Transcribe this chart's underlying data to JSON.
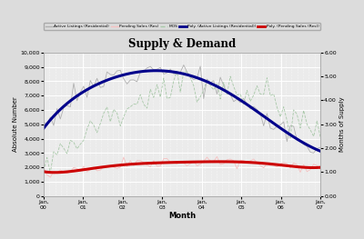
{
  "title": "Supply & Demand",
  "xlabel": "Month",
  "ylabel_left": "Absolute Number",
  "ylabel_right": "Months of Supply",
  "x_labels": [
    "Jan,\n00",
    "Jan,\n01",
    "Jan,\n02",
    "Jan,\n03",
    "Jan,\n04",
    "Jan,\n05",
    "Jan,\n06",
    "Jan,\n07"
  ],
  "n_points": 84,
  "ylim_left": [
    0,
    10000
  ],
  "ylim_right": [
    0.0,
    6.0
  ],
  "bg_color": "#dcdcdc",
  "plot_bg_color": "#ebebeb",
  "grid_color": "#ffffff",
  "active_listings_color": "#b0b0b0",
  "pending_sales_color": "#f5c0c0",
  "mos_color": "#a8c8a8",
  "poly_active_color": "#00008b",
  "poly_pending_color": "#cc0000",
  "legend_labels": [
    "Active Listings (Residential)",
    "Pending Sales (Res)",
    "MOS",
    "Poly. (Active Listings (Residential))",
    "Poly. (Pending Sales (Res))"
  ],
  "legend_colors": [
    "#b0b0b0",
    "#f5c0c0",
    "#a8c8a8",
    "#00008b",
    "#cc0000"
  ],
  "legend_styles": [
    "solid",
    "solid",
    "dashed",
    "solid",
    "solid"
  ],
  "legend_widths": [
    1.0,
    1.0,
    1.0,
    2.0,
    2.0
  ]
}
